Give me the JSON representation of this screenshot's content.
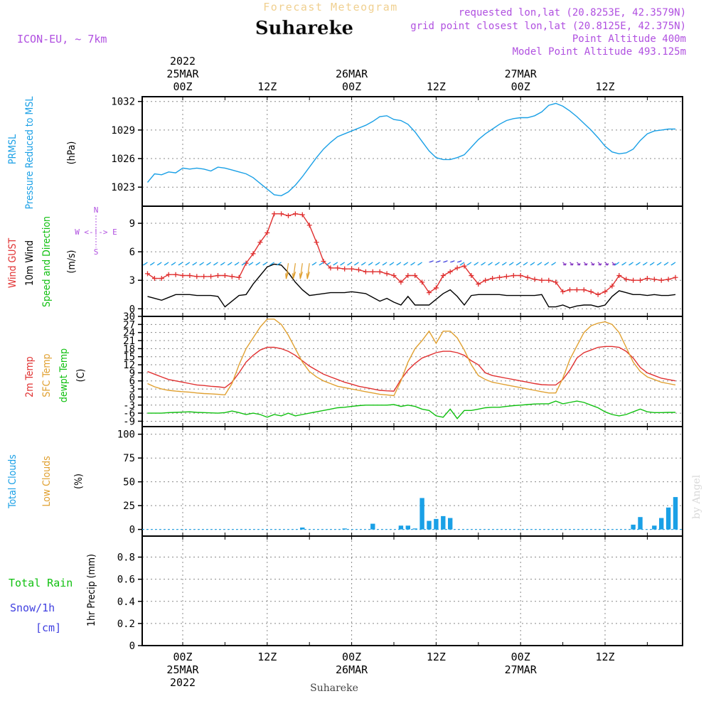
{
  "header": {
    "forecast_title": "Forecast Meteogram",
    "location": "Suhareke",
    "model": "ICON-EU, ~ 7km",
    "requested": "requested lon,lat (20.8253E, 42.3579N)",
    "grid_point": "grid point closest lon,lat (20.8125E, 42.375N)",
    "point_altitude": "Point Altitude 400m",
    "model_altitude": "Model Point Altitude 493.125m",
    "watermark": "by Angel",
    "footer_location": "Suhareke"
  },
  "colors": {
    "pressure": "#1aa0e6",
    "gust": "#e03030",
    "wind10m": "#000000",
    "sfc_temp": "#e0a030",
    "t2m": "#e03030",
    "dewpt": "#10c010",
    "clouds_total": "#1aa0e6",
    "clouds_low": "#e0a030",
    "rain": "#10c010",
    "snow": "#4040e0",
    "purple": "#b050e0"
  },
  "time_axis": {
    "top_labels": [
      {
        "t": 0,
        "lines": [
          "2022",
          "25MAR",
          "00Z"
        ]
      },
      {
        "t": 12,
        "lines": [
          "12Z"
        ]
      },
      {
        "t": 24,
        "lines": [
          "26MAR",
          "00Z"
        ]
      },
      {
        "t": 36,
        "lines": [
          "12Z"
        ]
      },
      {
        "t": 48,
        "lines": [
          "27MAR",
          "00Z"
        ]
      },
      {
        "t": 60,
        "lines": [
          "12Z"
        ]
      }
    ],
    "bottom_labels": [
      {
        "t": 0,
        "lines": [
          "00Z",
          "25MAR",
          "2022"
        ]
      },
      {
        "t": 12,
        "lines": [
          "12Z"
        ]
      },
      {
        "t": 24,
        "lines": [
          "00Z",
          "26MAR"
        ]
      },
      {
        "t": 36,
        "lines": [
          "12Z"
        ]
      },
      {
        "t": 48,
        "lines": [
          "00Z",
          "27MAR"
        ]
      },
      {
        "t": 60,
        "lines": [
          "12Z"
        ]
      }
    ]
  },
  "panels": {
    "pressure": {
      "labels": [
        {
          "text": "PRMSL",
          "color": "pressure"
        },
        {
          "text": "Pressure Reduced to MSL",
          "color": "pressure"
        },
        {
          "text": "(hPa)",
          "color": "wind10m"
        }
      ]
    },
    "wind": {
      "labels": [
        {
          "text": "Wind GUST",
          "color": "gust"
        },
        {
          "text": "10m Wind",
          "color": "wind10m"
        },
        {
          "text": "Speed and Direction",
          "color": "dewpt"
        },
        {
          "text": "(m/s)",
          "color": "wind10m"
        }
      ],
      "compass": {
        "n": "N",
        "s": "S",
        "w": "W <-!-> E"
      }
    },
    "temp": {
      "labels": [
        {
          "text": "2m Temp",
          "color": "t2m"
        },
        {
          "text": "SFC Temp",
          "color": "sfc_temp"
        },
        {
          "text": "dewpt Temp",
          "color": "dewpt"
        },
        {
          "text": "(C)",
          "color": "wind10m"
        }
      ]
    },
    "clouds": {
      "labels": [
        {
          "text": "Total Clouds",
          "color": "clouds_total"
        },
        {
          "text": "Low Clouds",
          "color": "clouds_low"
        },
        {
          "text": "(%)",
          "color": "wind10m"
        }
      ]
    },
    "precip": {
      "labels_left": [
        {
          "text": "Total  Rain",
          "color": "rain"
        },
        {
          "text": "Snow/1h",
          "color": "snow"
        },
        {
          "text": "[cm]",
          "color": "snow"
        }
      ],
      "ylabel": "1hr Precip (mm)"
    }
  },
  "chart_data": [
    {
      "type": "line",
      "title": "Pressure Reduced to MSL",
      "ylabel": "(hPa)",
      "ylim": [
        1021,
        1032.5
      ],
      "yticks": [
        1023,
        1026,
        1029,
        1032
      ],
      "x_hours": [
        -5,
        -4,
        -3,
        -2,
        -1,
        0,
        1,
        2,
        3,
        4,
        5,
        6,
        7,
        8,
        9,
        10,
        11,
        12,
        13,
        14,
        15,
        16,
        17,
        18,
        19,
        20,
        21,
        22,
        23,
        24,
        25,
        26,
        27,
        28,
        29,
        30,
        31,
        32,
        33,
        34,
        35,
        36,
        37,
        38,
        39,
        40,
        41,
        42,
        43,
        44,
        45,
        46,
        47,
        48,
        49,
        50,
        51,
        52,
        53,
        54,
        55,
        56,
        57,
        58,
        59,
        60,
        61,
        62,
        63,
        64,
        65,
        66,
        67,
        68,
        69,
        70
      ],
      "series": [
        {
          "name": "PRMSL",
          "values": [
            1023.5,
            1024.4,
            1024.3,
            1024.6,
            1024.5,
            1025.0,
            1024.9,
            1025.0,
            1024.9,
            1024.7,
            1025.1,
            1025.0,
            1024.8,
            1024.6,
            1024.4,
            1024.0,
            1023.4,
            1022.8,
            1022.2,
            1022.1,
            1022.5,
            1023.2,
            1024.1,
            1025.1,
            1026.1,
            1027.0,
            1027.7,
            1028.3,
            1028.6,
            1028.9,
            1029.2,
            1029.5,
            1029.9,
            1030.4,
            1030.5,
            1030.1,
            1030.0,
            1029.6,
            1028.8,
            1027.8,
            1026.8,
            1026.1,
            1025.9,
            1025.9,
            1026.1,
            1026.4,
            1027.2,
            1028.0,
            1028.6,
            1029.1,
            1029.6,
            1030.0,
            1030.2,
            1030.3,
            1030.3,
            1030.5,
            1030.9,
            1031.6,
            1031.8,
            1031.5,
            1031.0,
            1030.4,
            1029.7,
            1029.0,
            1028.2,
            1027.3,
            1026.7,
            1026.5,
            1026.6,
            1027.0,
            1027.9,
            1028.6,
            1028.9,
            1029.0,
            1029.1,
            1029.1
          ]
        }
      ]
    },
    {
      "type": "line",
      "title": "Wind GUST / 10m Wind Speed and Direction",
      "ylabel": "(m/s)",
      "ylim": [
        -0.8,
        10.8
      ],
      "yticks": [
        0,
        3,
        6,
        9
      ],
      "x_hours": [
        -5,
        -4,
        -3,
        -2,
        -1,
        0,
        1,
        2,
        3,
        4,
        5,
        6,
        7,
        8,
        9,
        10,
        11,
        12,
        13,
        14,
        15,
        16,
        17,
        18,
        19,
        20,
        21,
        22,
        23,
        24,
        25,
        26,
        27,
        28,
        29,
        30,
        31,
        32,
        33,
        34,
        35,
        36,
        37,
        38,
        39,
        40,
        41,
        42,
        43,
        44,
        45,
        46,
        47,
        48,
        49,
        50,
        51,
        52,
        53,
        54,
        55,
        56,
        57,
        58,
        59,
        60,
        61,
        62,
        63,
        64,
        65,
        66,
        67,
        68,
        69,
        70
      ],
      "series": [
        {
          "name": "Wind GUST",
          "values": [
            3.7,
            3.2,
            3.2,
            3.6,
            3.6,
            3.5,
            3.5,
            3.4,
            3.4,
            3.4,
            3.5,
            3.5,
            3.4,
            3.3,
            4.8,
            5.8,
            7.0,
            8.0,
            10.0,
            10.0,
            9.8,
            10.0,
            9.9,
            8.8,
            7.0,
            5.0,
            4.3,
            4.3,
            4.2,
            4.2,
            4.1,
            3.9,
            3.9,
            3.9,
            3.7,
            3.5,
            2.8,
            3.5,
            3.5,
            2.8,
            1.7,
            2.2,
            3.5,
            3.9,
            4.3,
            4.5,
            3.5,
            2.6,
            3.0,
            3.2,
            3.3,
            3.4,
            3.5,
            3.5,
            3.3,
            3.1,
            3.0,
            3.0,
            2.8,
            1.8,
            2.0,
            2.0,
            2.0,
            1.8,
            1.5,
            1.8,
            2.4,
            3.5,
            3.1,
            3.0,
            3.0,
            3.2,
            3.1,
            3.0,
            3.1,
            3.3
          ]
        },
        {
          "name": "10m Wind",
          "values": [
            1.3,
            1.1,
            0.9,
            1.2,
            1.5,
            1.5,
            1.5,
            1.4,
            1.4,
            1.4,
            1.3,
            0.2,
            0.8,
            1.4,
            1.5,
            2.6,
            3.5,
            4.4,
            4.7,
            4.6,
            3.8,
            2.8,
            2.0,
            1.4,
            1.5,
            1.6,
            1.7,
            1.7,
            1.7,
            1.8,
            1.7,
            1.6,
            1.2,
            0.8,
            1.1,
            0.7,
            0.4,
            1.3,
            0.4,
            0.4,
            0.4,
            1.0,
            1.6,
            2.0,
            1.3,
            0.4,
            1.4,
            1.5,
            1.5,
            1.5,
            1.5,
            1.4,
            1.4,
            1.4,
            1.4,
            1.4,
            1.5,
            0.2,
            0.2,
            0.4,
            0.1,
            0.3,
            0.4,
            0.4,
            0.2,
            0.4,
            1.3,
            1.9,
            1.7,
            1.5,
            1.5,
            1.4,
            1.5,
            1.4,
            1.4,
            1.5
          ]
        }
      ]
    },
    {
      "type": "line",
      "title": "2m Temp / SFC Temp / dewpt Temp",
      "ylabel": "(C)",
      "ylim": [
        -11,
        30
      ],
      "yticks": [
        -9,
        -6,
        -3,
        0,
        3,
        6,
        9,
        12,
        15,
        18,
        21,
        24,
        27,
        30
      ],
      "x_hours": [
        -5,
        -4,
        -3,
        -2,
        -1,
        0,
        1,
        2,
        3,
        4,
        5,
        6,
        7,
        8,
        9,
        10,
        11,
        12,
        13,
        14,
        15,
        16,
        17,
        18,
        19,
        20,
        21,
        22,
        23,
        24,
        25,
        26,
        27,
        28,
        29,
        30,
        31,
        32,
        33,
        34,
        35,
        36,
        37,
        38,
        39,
        40,
        41,
        42,
        43,
        44,
        45,
        46,
        47,
        48,
        49,
        50,
        51,
        52,
        53,
        54,
        55,
        56,
        57,
        58,
        59,
        60,
        61,
        62,
        63,
        64,
        65,
        66,
        67,
        68,
        69,
        70
      ],
      "series": [
        {
          "name": "2m Temp",
          "values": [
            9.5,
            8.5,
            7.5,
            6.5,
            6.0,
            5.5,
            5.0,
            4.5,
            4.3,
            4.0,
            3.8,
            3.5,
            5.5,
            9.0,
            13.0,
            15.5,
            17.5,
            18.5,
            18.5,
            18.0,
            17.0,
            15.5,
            13.5,
            11.5,
            10.0,
            8.5,
            7.5,
            6.5,
            5.5,
            4.8,
            4.0,
            3.5,
            3.0,
            2.5,
            2.3,
            2.2,
            6.5,
            10.0,
            12.5,
            14.5,
            15.5,
            16.5,
            17.0,
            17.0,
            16.5,
            15.5,
            13.5,
            12.0,
            9.0,
            8.0,
            7.5,
            7.0,
            6.5,
            6.0,
            5.5,
            5.0,
            4.6,
            4.5,
            4.5,
            6.5,
            10.0,
            14.5,
            16.5,
            17.5,
            18.5,
            18.8,
            18.8,
            18.5,
            17.0,
            14.5,
            11.0,
            9.0,
            8.0,
            7.0,
            6.5,
            6.0
          ]
        },
        {
          "name": "SFC Temp",
          "values": [
            5.0,
            3.8,
            3.0,
            2.5,
            2.2,
            2.0,
            1.8,
            1.5,
            1.3,
            1.2,
            1.0,
            0.8,
            5.0,
            12.0,
            18.0,
            22.0,
            26.0,
            29.0,
            29.0,
            27.0,
            23.0,
            18.0,
            13.0,
            9.5,
            7.5,
            6.0,
            5.0,
            4.0,
            3.5,
            3.0,
            2.5,
            2.0,
            1.5,
            1.0,
            0.8,
            0.5,
            6.0,
            13.0,
            18.0,
            21.0,
            24.5,
            20.0,
            24.5,
            24.5,
            22.0,
            17.5,
            12.0,
            8.0,
            6.5,
            5.5,
            5.0,
            4.5,
            4.0,
            3.5,
            3.0,
            2.5,
            2.0,
            1.5,
            1.5,
            7.0,
            14.0,
            19.0,
            24.0,
            26.5,
            27.5,
            28.0,
            27.0,
            24.0,
            18.5,
            13.0,
            9.5,
            7.5,
            6.5,
            5.5,
            5.0,
            4.5
          ]
        },
        {
          "name": "dewpt Temp",
          "values": [
            -6.0,
            -6.0,
            -6.0,
            -5.8,
            -5.7,
            -5.6,
            -5.5,
            -5.7,
            -5.8,
            -5.9,
            -6.0,
            -5.8,
            -5.2,
            -5.8,
            -6.5,
            -6.0,
            -6.5,
            -7.5,
            -6.5,
            -7.0,
            -6.0,
            -7.0,
            -6.5,
            -6.0,
            -5.5,
            -5.0,
            -4.5,
            -4.0,
            -3.8,
            -3.5,
            -3.2,
            -3.0,
            -3.0,
            -3.0,
            -3.0,
            -2.8,
            -3.5,
            -3.0,
            -3.5,
            -4.5,
            -5.0,
            -7.0,
            -7.5,
            -4.5,
            -8.0,
            -5.0,
            -5.0,
            -4.5,
            -4.0,
            -3.8,
            -3.8,
            -3.5,
            -3.2,
            -3.0,
            -2.8,
            -2.6,
            -2.5,
            -2.5,
            -1.5,
            -2.5,
            -2.0,
            -1.5,
            -2.0,
            -3.0,
            -4.0,
            -5.5,
            -6.5,
            -7.0,
            -6.5,
            -5.5,
            -4.5,
            -5.5,
            -5.8,
            -5.8,
            -5.7,
            -5.7
          ]
        }
      ]
    },
    {
      "type": "bar",
      "title": "Total Clouds / Low Clouds",
      "ylabel": "(%)",
      "ylim": [
        -7,
        108
      ],
      "yticks": [
        0,
        25,
        50,
        75,
        100
      ],
      "x_hours": [
        17,
        23,
        27,
        31,
        32,
        33,
        34,
        35,
        36,
        37,
        38,
        39,
        40,
        41,
        42,
        43,
        44,
        45,
        46,
        47,
        48,
        49,
        50,
        51,
        52,
        53,
        54,
        55,
        56,
        57,
        58,
        59,
        60,
        61,
        62,
        63,
        64,
        65,
        66,
        67,
        68,
        69,
        70
      ],
      "series": [
        {
          "name": "Total Clouds",
          "values": [
            2,
            1,
            6,
            4,
            4,
            1,
            33,
            9,
            11,
            14,
            12,
            0,
            0,
            0,
            0,
            0,
            0,
            0,
            0,
            0,
            0,
            0,
            0,
            0,
            0,
            0,
            0,
            0,
            0,
            0,
            0,
            0,
            0,
            0,
            0,
            0,
            5,
            13,
            0,
            4,
            12,
            23,
            34
          ]
        },
        {
          "name": "Low Clouds",
          "values": [
            0,
            0,
            0,
            0,
            0,
            0,
            0,
            0,
            0,
            0,
            0,
            0,
            0,
            0,
            0,
            0,
            0,
            0,
            0,
            0,
            0,
            0,
            0,
            0,
            0,
            0,
            0,
            0,
            0,
            0,
            0,
            0,
            0,
            0,
            0,
            0,
            0,
            0,
            0,
            0,
            0,
            0,
            0
          ]
        }
      ]
    },
    {
      "type": "bar",
      "title": "1hr Precip",
      "ylabel": "1hr Precip (mm)",
      "ylim": [
        0,
        0.99
      ],
      "yticks": [
        0,
        0.2,
        0.4,
        0.6,
        0.8
      ],
      "series": [
        {
          "name": "Total Rain",
          "values": []
        },
        {
          "name": "Snow/1h",
          "values": []
        }
      ]
    }
  ]
}
